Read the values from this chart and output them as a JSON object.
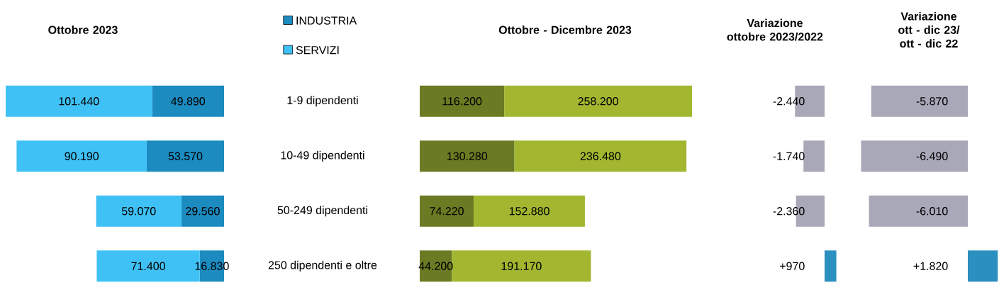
{
  "chart_data": [
    {
      "type": "bar",
      "orientation": "horizontal",
      "stacked": true,
      "title": "Ottobre 2023",
      "categories": [
        "1-9 dipendenti",
        "10-49 dipendenti",
        "50-249 dipendenti",
        "250 dipendenti e oltre"
      ],
      "tick_labels": "y",
      "legend": "top right",
      "series": [
        {
          "name": "INDUSTRIA",
          "color": "#1b8bc0",
          "values": [
            49890,
            53570,
            29560,
            16830
          ],
          "value_labels": [
            "49.890",
            "53.570",
            "29.560",
            "16.830"
          ]
        },
        {
          "name": "SERVIZI",
          "color": "#3fc1f5",
          "values": [
            101440,
            90190,
            59070,
            71400
          ],
          "value_labels": [
            "101.440",
            "90.190",
            "59.070",
            "71.400"
          ]
        }
      ]
    },
    {
      "type": "bar",
      "orientation": "horizontal",
      "stacked": true,
      "title": "Ottobre - Dicembre 2023",
      "tick_labels": false,
      "series": [
        {
          "color": "#6b7b23",
          "values": [
            116200,
            130280,
            74220,
            44200
          ],
          "value_labels": [
            "116.200",
            "130.280",
            "74.220",
            "44.200"
          ]
        },
        {
          "color": "#a2b630",
          "values": [
            258200,
            236480,
            152880,
            191170
          ],
          "value_labels": [
            "258.200",
            "236.480",
            "152.880",
            "191.170"
          ]
        }
      ]
    },
    {
      "type": "bar",
      "orientation": "horizontal",
      "title": "Variazione ottobre 2023/2022",
      "tick_labels": false,
      "values": [
        -2440,
        -1740,
        -2360,
        970
      ],
      "value_labels": [
        "-2.440",
        "-1.740",
        "-2.360",
        "+970"
      ],
      "colors": [
        "#a9a8b8",
        "#a9a8b8",
        "#a9a8b8",
        "#2b8fc0"
      ]
    },
    {
      "type": "bar",
      "orientation": "horizontal",
      "title": "Variazione ott - dic 23/ ott - dic 22",
      "tick_labels": false,
      "values": [
        -5870,
        -6490,
        -6010,
        1820
      ],
      "value_labels": [
        "-5.870",
        "-6.490",
        "-6.010",
        "+1.820"
      ],
      "colors": [
        "#a9a8b8",
        "#a9a8b8",
        "#a9a8b8",
        "#2b8fc0"
      ]
    }
  ]
}
